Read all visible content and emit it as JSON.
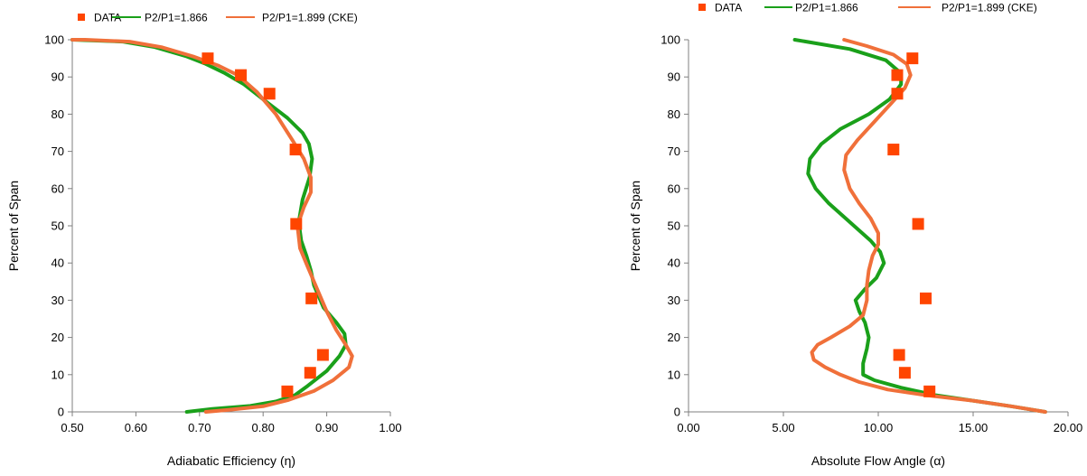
{
  "chart_data": [
    {
      "type": "line",
      "xlabel": "Adiabatic Efficiency (η)",
      "ylabel": "Percent of Span",
      "xlim": [
        0.5,
        1.0
      ],
      "ylim": [
        0,
        100
      ],
      "xticks": [
        "0.50",
        "0.60",
        "0.70",
        "0.80",
        "0.90",
        "1.00"
      ],
      "yticks": [
        "0",
        "10",
        "20",
        "30",
        "40",
        "50",
        "60",
        "70",
        "80",
        "90",
        "100"
      ],
      "grid": false,
      "legend_position": "top",
      "legend": [
        "DATA",
        "P2/P1=1.866",
        "P2/P1=1.899 (CKE)"
      ],
      "colors": {
        "data": "#ff4500",
        "series1": "#1aa01a",
        "series2": "#f0703a"
      },
      "series": [
        {
          "name": "DATA",
          "type": "scatter",
          "marker": "square",
          "x": [
            0.713,
            0.765,
            0.81,
            0.851,
            0.852,
            0.876,
            0.894,
            0.874,
            0.838
          ],
          "y": [
            95,
            90.5,
            85.5,
            70.5,
            50.5,
            30.5,
            15.3,
            10.5,
            5.5
          ]
        },
        {
          "name": "P2/P1=1.866",
          "x": [
            0.68,
            0.72,
            0.78,
            0.82,
            0.85,
            0.87,
            0.9,
            0.92,
            0.93,
            0.928,
            0.915,
            0.895,
            0.88,
            0.875,
            0.868,
            0.86,
            0.856,
            0.862,
            0.873,
            0.877,
            0.872,
            0.862,
            0.838,
            0.8,
            0.77,
            0.74,
            0.71,
            0.68,
            0.63,
            0.58,
            0.5
          ],
          "y": [
            0,
            0.8,
            1.6,
            2.8,
            4.5,
            7,
            11,
            15,
            18,
            21,
            24,
            28,
            34,
            38,
            42,
            46,
            51,
            57,
            63,
            68,
            72,
            75,
            79,
            84,
            88,
            91,
            93.5,
            95.5,
            98,
            99.5,
            100
          ]
        },
        {
          "name": "P2/P1=1.899 (CKE)",
          "x": [
            0.71,
            0.75,
            0.8,
            0.84,
            0.88,
            0.91,
            0.935,
            0.94,
            0.93,
            0.915,
            0.9,
            0.885,
            0.87,
            0.858,
            0.854,
            0.864,
            0.875,
            0.875,
            0.864,
            0.846,
            0.82,
            0.79,
            0.76,
            0.73,
            0.69,
            0.64,
            0.59,
            0.52,
            0.5
          ],
          "y": [
            0,
            0.6,
            1.5,
            3.2,
            5.6,
            8.5,
            12,
            15,
            18,
            22,
            27,
            33,
            39,
            44,
            50,
            55,
            59,
            63,
            68,
            73,
            80,
            86,
            90.5,
            93,
            95.5,
            98,
            99.5,
            100,
            100
          ]
        }
      ]
    },
    {
      "type": "line",
      "xlabel": "Absolute Flow Angle (α)",
      "ylabel": "Percent of Span",
      "xlim": [
        0,
        20
      ],
      "ylim": [
        0,
        100
      ],
      "xticks": [
        "0.00",
        "5.00",
        "10.00",
        "15.00",
        "20.00"
      ],
      "yticks": [
        "0",
        "10",
        "20",
        "30",
        "40",
        "50",
        "60",
        "70",
        "80",
        "90",
        "100"
      ],
      "grid": false,
      "legend_position": "top",
      "legend": [
        "DATA",
        "P2/P1=1.866",
        "P2/P1=1.899 (CKE)"
      ],
      "colors": {
        "data": "#ff4500",
        "series1": "#1aa01a",
        "series2": "#f0703a"
      },
      "series": [
        {
          "name": "DATA",
          "type": "scatter",
          "marker": "square",
          "x": [
            11.8,
            11.0,
            11.0,
            10.8,
            12.1,
            12.5,
            11.1,
            11.4,
            12.7
          ],
          "y": [
            95,
            90.5,
            85.5,
            70.5,
            50.5,
            30.5,
            15.3,
            10.5,
            5.5
          ]
        },
        {
          "name": "P2/P1=1.866",
          "x": [
            18.8,
            17.0,
            15.0,
            13.0,
            11.2,
            9.8,
            9.2,
            9.2,
            9.4,
            9.5,
            9.3,
            9.0,
            8.8,
            9.3,
            9.9,
            10.3,
            10.1,
            9.6,
            8.5,
            7.4,
            6.7,
            6.3,
            6.4,
            7.0,
            8.0,
            9.5,
            10.6,
            11.2,
            11.2,
            10.4,
            8.5,
            5.6
          ],
          "y": [
            0,
            1.5,
            3,
            4.5,
            6.5,
            8.5,
            10,
            13,
            17,
            20,
            24,
            27,
            30,
            33,
            36,
            40,
            43,
            46,
            51,
            56,
            60,
            64,
            68,
            72,
            76,
            80,
            84,
            88,
            91,
            94.5,
            97.5,
            100
          ]
        },
        {
          "name": "P2/P1=1.899 (CKE)",
          "x": [
            18.8,
            17.0,
            15.0,
            12.5,
            10.5,
            9.0,
            8.0,
            7.2,
            6.6,
            6.5,
            6.8,
            7.5,
            8.5,
            9.2,
            9.4,
            9.4,
            9.5,
            9.7,
            10.0,
            10.0,
            9.6,
            9.0,
            8.5,
            8.2,
            8.3,
            8.9,
            9.8,
            10.7,
            11.4,
            11.7,
            11.5,
            10.8,
            9.4,
            8.2
          ],
          "y": [
            0,
            1.5,
            3,
            4.5,
            6,
            8,
            10,
            12,
            14,
            16,
            18,
            20,
            23,
            26,
            30,
            34,
            38,
            42,
            45,
            48,
            52,
            56,
            60,
            65,
            69,
            73,
            78,
            83,
            87,
            90.5,
            93.5,
            96,
            98.3,
            100
          ]
        }
      ]
    }
  ]
}
